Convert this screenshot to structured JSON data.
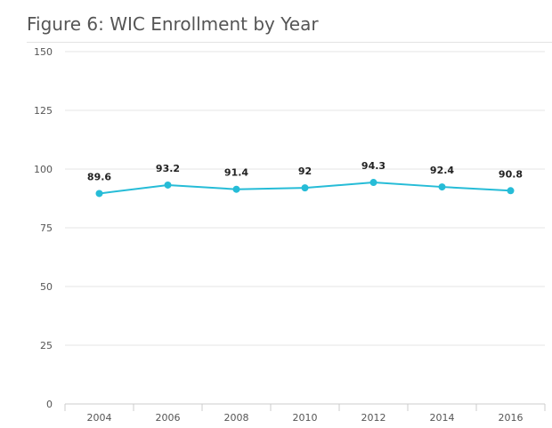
{
  "title": "Figure 6: WIC Enrollment by Year",
  "colors": {
    "series": "#26bcd7",
    "grid": "#e6e6e6",
    "axis": "#cccccc"
  },
  "chart_data": {
    "type": "line",
    "title": "Figure 6: WIC Enrollment by Year",
    "xlabel": "",
    "ylabel": "",
    "categories": [
      "2004",
      "2006",
      "2008",
      "2010",
      "2012",
      "2014",
      "2016"
    ],
    "series": [
      {
        "values": [
          89.6,
          93.2,
          91.4,
          92,
          94.3,
          92.4,
          90.8
        ]
      }
    ],
    "data_labels": [
      "89.6",
      "93.2",
      "91.4",
      "92",
      "94.3",
      "92.4",
      "90.8"
    ],
    "ylim": [
      0,
      150
    ],
    "yticks": [
      0,
      25,
      50,
      75,
      100,
      125,
      150
    ],
    "grid": true,
    "legend": "none"
  }
}
